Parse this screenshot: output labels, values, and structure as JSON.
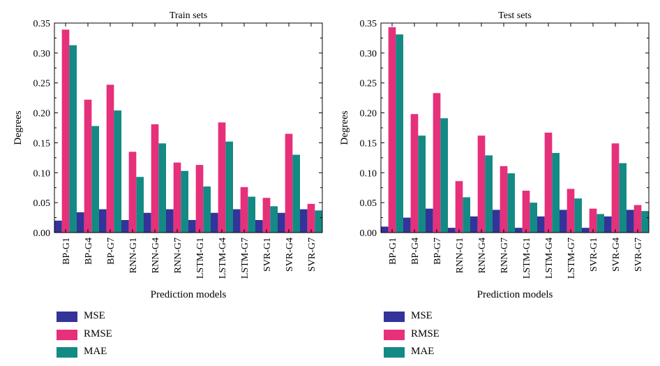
{
  "colors": {
    "MSE": "#33339a",
    "RMSE": "#e6307a",
    "MAE": "#138a84"
  },
  "chart_data": [
    {
      "type": "bar",
      "title": "Train sets",
      "xlabel": "Prediction models",
      "ylabel": "Degrees",
      "ylim": [
        0,
        0.35
      ],
      "yticks": [
        "0.00",
        "0.05",
        "0.10",
        "0.15",
        "0.20",
        "0.25",
        "0.30",
        "0.35"
      ],
      "categories": [
        "BP-G1",
        "BP-G4",
        "BP-G7",
        "RNN-G1",
        "RNN-G4",
        "RNN-G7",
        "LSTM-G1",
        "LSTM-G4",
        "LSTM-G7",
        "SVR-G1",
        "SVR-G4",
        "SVR-G7"
      ],
      "series": [
        {
          "name": "MSE",
          "values": [
            0.02,
            0.034,
            0.039,
            0.021,
            0.033,
            0.039,
            0.021,
            0.033,
            0.039,
            0.021,
            0.033,
            0.039
          ]
        },
        {
          "name": "RMSE",
          "values": [
            0.339,
            0.222,
            0.247,
            0.135,
            0.181,
            0.117,
            0.113,
            0.184,
            0.076,
            0.058,
            0.165,
            0.048
          ]
        },
        {
          "name": "MAE",
          "values": [
            0.313,
            0.178,
            0.204,
            0.093,
            0.149,
            0.103,
            0.077,
            0.152,
            0.06,
            0.044,
            0.13,
            0.037
          ]
        }
      ],
      "legend": [
        "MSE",
        "RMSE",
        "MAE"
      ]
    },
    {
      "type": "bar",
      "title": "Test sets",
      "xlabel": "Prediction models",
      "ylabel": "Degrees",
      "ylim": [
        0,
        0.35
      ],
      "yticks": [
        "0.00",
        "0.05",
        "0.10",
        "0.15",
        "0.20",
        "0.25",
        "0.30",
        "0.35"
      ],
      "categories": [
        "BP-G1",
        "BP-G4",
        "BP-G7",
        "RNN-G1",
        "RNN-G4",
        "RNN-G7",
        "LSTM-G1",
        "LSTM-G4",
        "LSTM-G7",
        "SVR-G1",
        "SVR-G4",
        "SVR-G7"
      ],
      "series": [
        {
          "name": "MSE",
          "values": [
            0.01,
            0.025,
            0.04,
            0.008,
            0.027,
            0.038,
            0.008,
            0.027,
            0.038,
            0.008,
            0.027,
            0.038
          ]
        },
        {
          "name": "RMSE",
          "values": [
            0.343,
            0.198,
            0.233,
            0.086,
            0.162,
            0.111,
            0.07,
            0.167,
            0.073,
            0.04,
            0.149,
            0.046
          ]
        },
        {
          "name": "MAE",
          "values": [
            0.331,
            0.162,
            0.191,
            0.059,
            0.129,
            0.099,
            0.05,
            0.133,
            0.057,
            0.031,
            0.116,
            0.036
          ]
        }
      ],
      "legend": [
        "MSE",
        "RMSE",
        "MAE"
      ]
    }
  ]
}
